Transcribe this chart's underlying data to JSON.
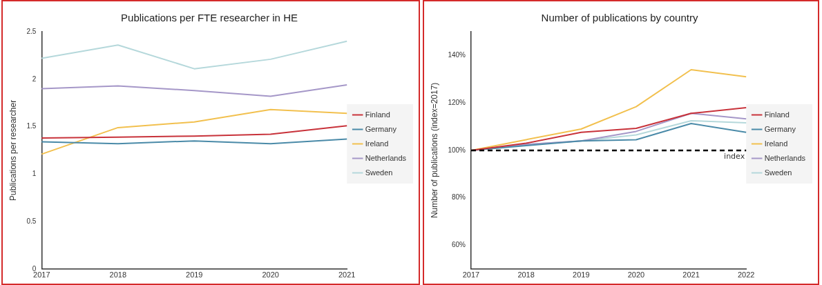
{
  "chart_data": [
    {
      "type": "line",
      "title": "Publications per FTE researcher in HE",
      "ylabel": "Publications per researcher",
      "categories": [
        "2017",
        "2018",
        "2019",
        "2020",
        "2021"
      ],
      "series": [
        {
          "name": "Finland",
          "color": "#c8323a",
          "values": [
            1.38,
            1.39,
            1.4,
            1.42,
            1.51
          ]
        },
        {
          "name": "Germany",
          "color": "#4a8aa8",
          "values": [
            1.34,
            1.32,
            1.35,
            1.32,
            1.37
          ]
        },
        {
          "name": "Ireland",
          "color": "#f2c04e",
          "values": [
            1.21,
            1.49,
            1.55,
            1.68,
            1.64
          ]
        },
        {
          "name": "Netherlands",
          "color": "#a597c8",
          "values": [
            1.9,
            1.93,
            1.88,
            1.82,
            1.94
          ]
        },
        {
          "name": "Sweden",
          "color": "#b5d8db",
          "values": [
            2.22,
            2.36,
            2.11,
            2.21,
            2.4
          ]
        }
      ],
      "ylim": [
        0,
        2.5
      ],
      "yticks": [
        0,
        0.5,
        1,
        1.5,
        2,
        2.5
      ],
      "grid": false,
      "legend": "right",
      "marker": "none",
      "line_style": "solid"
    },
    {
      "type": "line",
      "title": "Number of publications by country",
      "ylabel": "Number of publications (index=2017)",
      "categories": [
        "2017",
        "2018",
        "2019",
        "2020",
        "2021",
        "2022"
      ],
      "series": [
        {
          "name": "Finland",
          "color": "#c8323a",
          "values": [
            100,
            103,
            107.6,
            109.3,
            115.6,
            118
          ]
        },
        {
          "name": "Germany",
          "color": "#4a8aa8",
          "values": [
            100,
            102,
            104,
            104.5,
            111.3,
            107.6
          ]
        },
        {
          "name": "Ireland",
          "color": "#f2c04e",
          "values": [
            100,
            104.5,
            109,
            118.4,
            134,
            131
          ]
        },
        {
          "name": "Netherlands",
          "color": "#a597c8",
          "values": [
            100,
            102.5,
            104,
            108,
            115.6,
            113.3
          ]
        },
        {
          "name": "Sweden",
          "color": "#b5d8db",
          "values": [
            100,
            102.5,
            104,
            106.5,
            112.5,
            111.6
          ]
        }
      ],
      "ylim": [
        50,
        150
      ],
      "yticks": [
        {
          "value": 60,
          "label": "60%"
        },
        {
          "value": 80,
          "label": "80%"
        },
        {
          "value": 100,
          "label": "100%"
        },
        {
          "value": 120,
          "label": "120%"
        },
        {
          "value": 140,
          "label": "140%"
        }
      ],
      "ref_lines": [
        {
          "axis": "y",
          "value": 100,
          "label": "index",
          "color": "#000000",
          "line_style": "dashed"
        }
      ],
      "grid": false,
      "legend": "right",
      "marker": "none",
      "line_style": "solid"
    }
  ]
}
